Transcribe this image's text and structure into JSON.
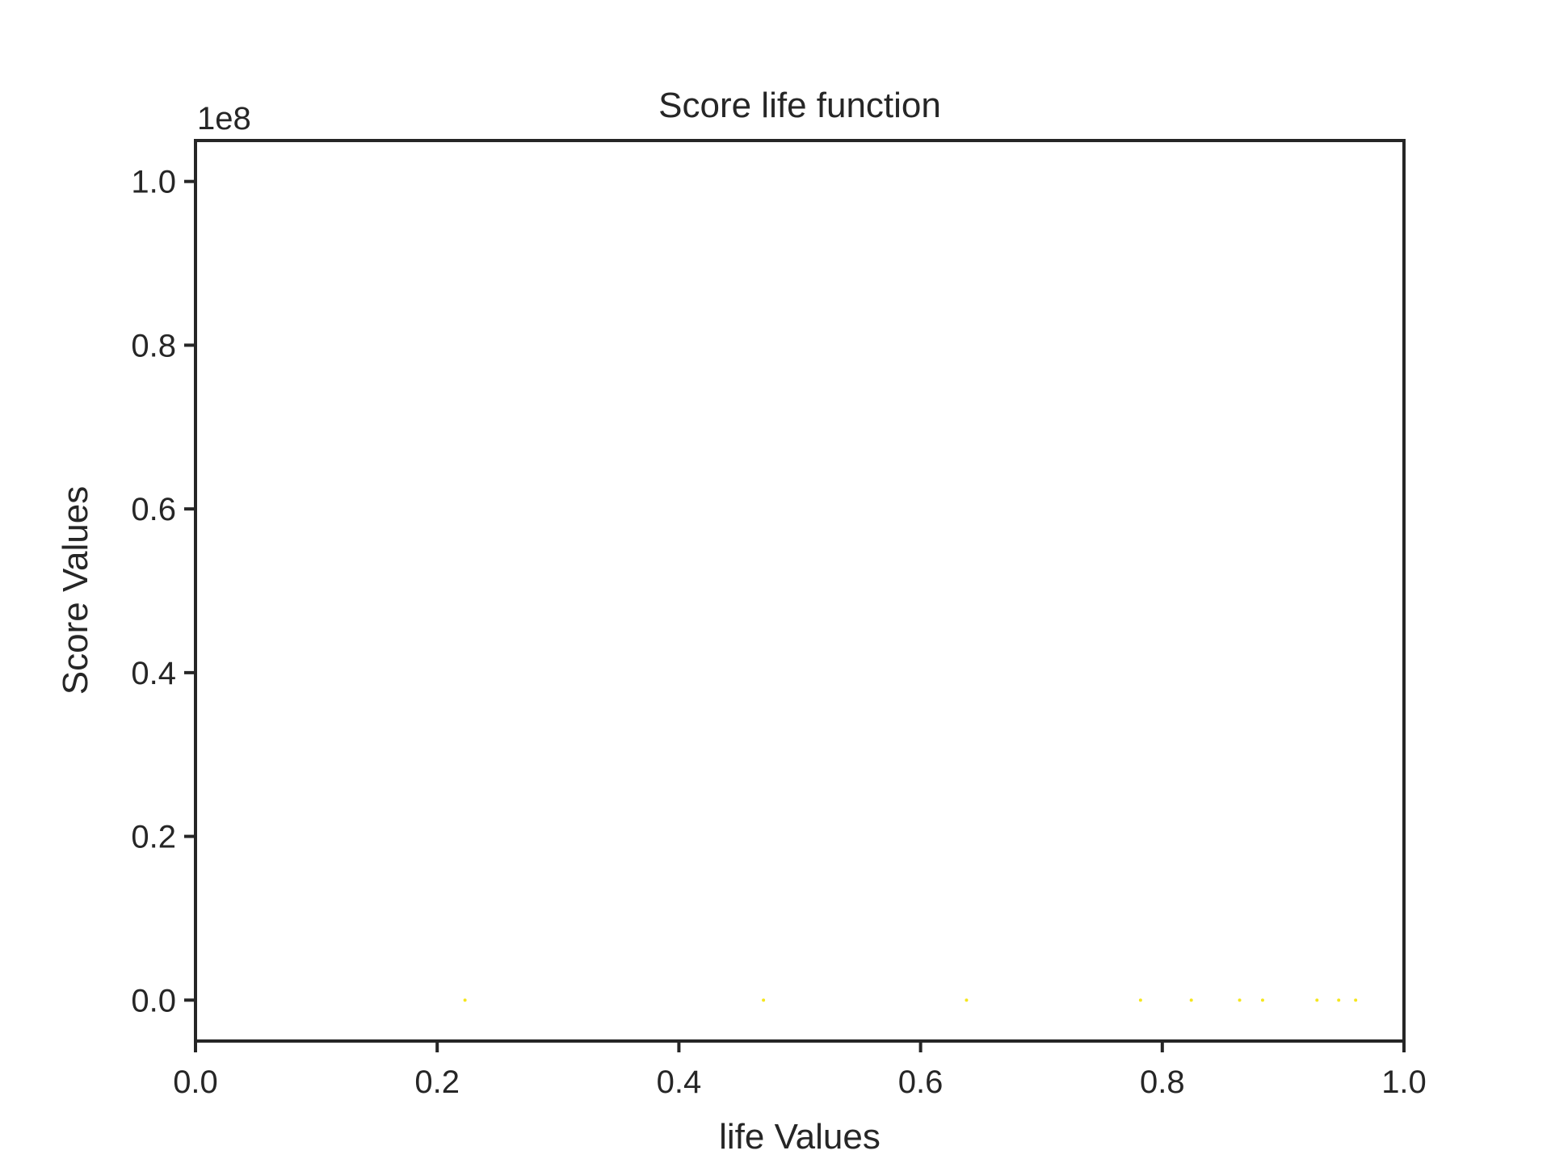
{
  "chart_data": {
    "type": "scatter",
    "title": "Score life function",
    "xlabel": "life Values",
    "ylabel": "Score Values",
    "y_offset_label": "1e8",
    "xlim": [
      0.0,
      1.0
    ],
    "ylim": [
      -0.05,
      1.05
    ],
    "x_ticks": [
      0.0,
      0.2,
      0.4,
      0.6,
      0.8,
      1.0
    ],
    "x_tick_labels": [
      "0.0",
      "0.2",
      "0.4",
      "0.6",
      "0.8",
      "1.0"
    ],
    "y_ticks": [
      0.0,
      0.2,
      0.4,
      0.6,
      0.8,
      1.0
    ],
    "y_tick_labels": [
      "0.0",
      "0.2",
      "0.4",
      "0.6",
      "0.8",
      "1.0"
    ],
    "grid": false,
    "marker_color": "#f5e61e",
    "series": [
      {
        "x": [
          0.223,
          0.47,
          0.638,
          0.782,
          0.824,
          0.864,
          0.883,
          0.928,
          0.946,
          0.96
        ],
        "y": [
          0,
          0,
          0,
          0,
          0,
          0,
          0,
          0,
          0,
          0
        ]
      }
    ]
  }
}
